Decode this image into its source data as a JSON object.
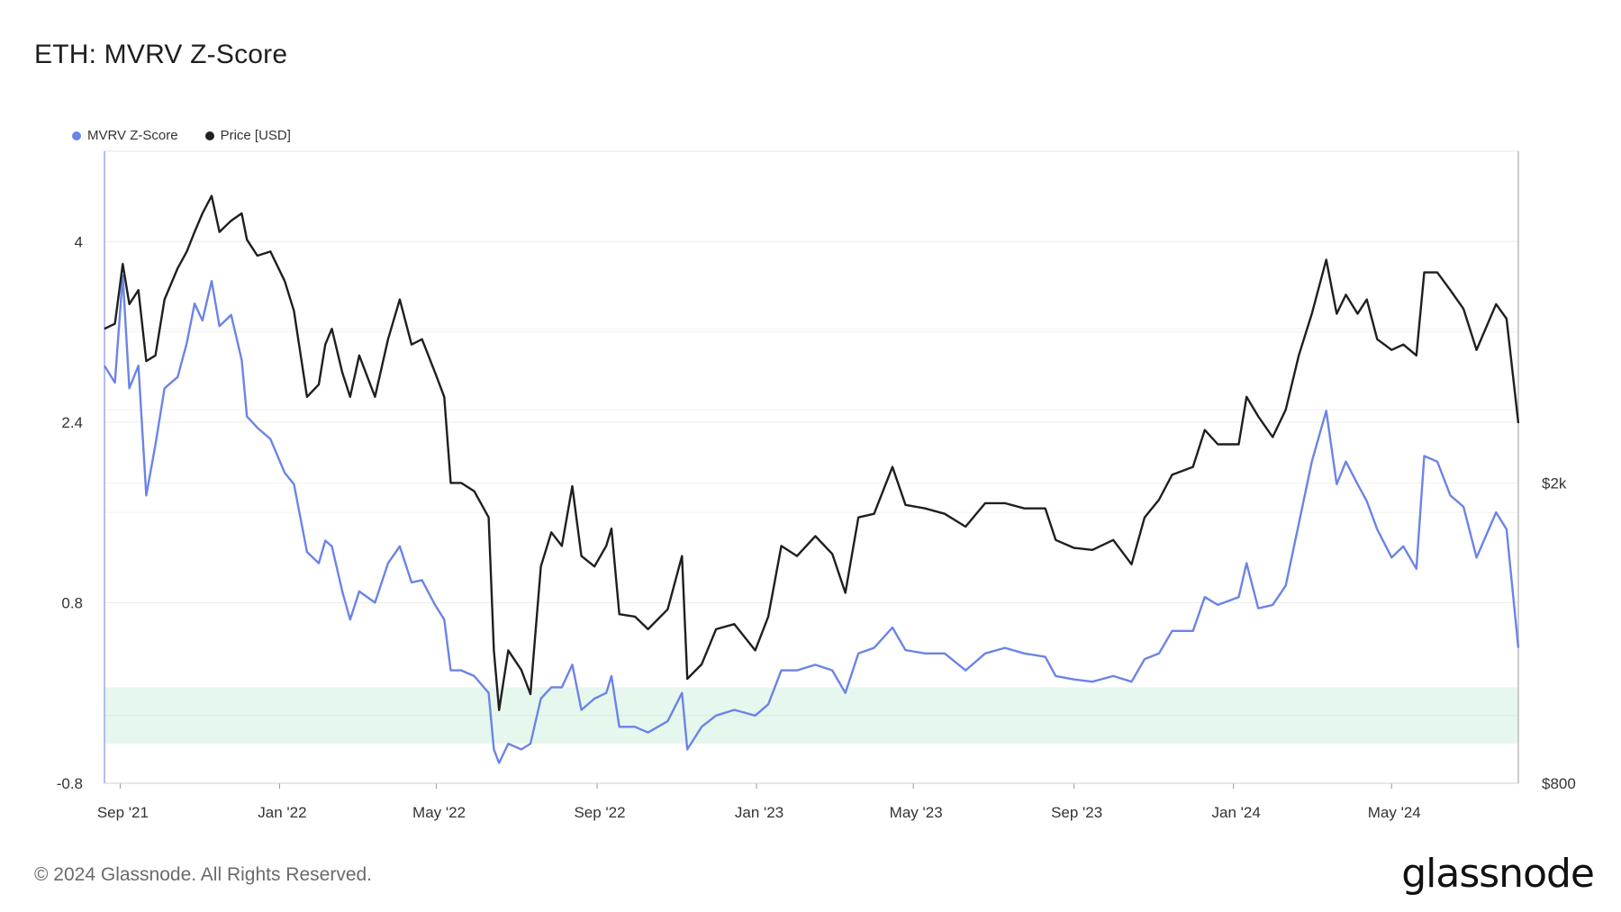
{
  "title": "ETH: MVRV Z-Score",
  "legend": [
    {
      "name": "MVRV Z-Score",
      "color": "#6b84e6"
    },
    {
      "name": "Price [USD]",
      "color": "#222222"
    }
  ],
  "footer": "© 2024 Glassnode. All Rights Reserved.",
  "logo": "glassnode",
  "colors": {
    "zscore": "#6b84e6",
    "price": "#1f1f1f",
    "zone": "#e6f7ee"
  },
  "chart_data": {
    "type": "line",
    "title": "ETH: MVRV Z-Score",
    "x_tick_labels": [
      "Sep '21",
      "Jan '22",
      "May '22",
      "Sep '22",
      "Jan '23",
      "May '23",
      "Sep '23",
      "Jan '24",
      "May '24"
    ],
    "x_range": [
      "2021-08-20",
      "2024-08-06"
    ],
    "y_left": {
      "ticks": [
        4,
        2.4,
        0.8,
        -0.8
      ],
      "tick_labels": [
        "4",
        "2.4",
        "0.8",
        "-0.8"
      ],
      "range": [
        -0.8,
        4.8
      ]
    },
    "y_right": {
      "scale": "log",
      "ticks": [
        2000,
        800
      ],
      "tick_labels": [
        "$2k",
        "$800"
      ],
      "range": [
        800,
        5500
      ]
    },
    "green_zone": {
      "from": -0.45,
      "to": 0.05
    },
    "grid": true,
    "legend_position": "top-left",
    "series": [
      {
        "name": "MVRV Z-Score",
        "axis": "left",
        "points": [
          [
            "2021-08-20",
            2.9
          ],
          [
            "2021-08-28",
            2.75
          ],
          [
            "2021-09-03",
            3.7
          ],
          [
            "2021-09-08",
            2.7
          ],
          [
            "2021-09-15",
            2.9
          ],
          [
            "2021-09-21",
            1.75
          ],
          [
            "2021-09-28",
            2.2
          ],
          [
            "2021-10-05",
            2.7
          ],
          [
            "2021-10-15",
            2.8
          ],
          [
            "2021-10-22",
            3.1
          ],
          [
            "2021-10-28",
            3.45
          ],
          [
            "2021-11-03",
            3.3
          ],
          [
            "2021-11-10",
            3.65
          ],
          [
            "2021-11-16",
            3.25
          ],
          [
            "2021-11-25",
            3.35
          ],
          [
            "2021-12-03",
            2.95
          ],
          [
            "2021-12-07",
            2.45
          ],
          [
            "2021-12-15",
            2.35
          ],
          [
            "2021-12-25",
            2.25
          ],
          [
            "2022-01-05",
            1.95
          ],
          [
            "2022-01-12",
            1.85
          ],
          [
            "2022-01-22",
            1.25
          ],
          [
            "2022-01-31",
            1.15
          ],
          [
            "2022-02-05",
            1.35
          ],
          [
            "2022-02-10",
            1.3
          ],
          [
            "2022-02-18",
            0.9
          ],
          [
            "2022-02-24",
            0.65
          ],
          [
            "2022-03-03",
            0.9
          ],
          [
            "2022-03-15",
            0.8
          ],
          [
            "2022-03-25",
            1.15
          ],
          [
            "2022-04-03",
            1.3
          ],
          [
            "2022-04-12",
            0.98
          ],
          [
            "2022-04-20",
            1.0
          ],
          [
            "2022-04-30",
            0.78
          ],
          [
            "2022-05-07",
            0.65
          ],
          [
            "2022-05-12",
            0.2
          ],
          [
            "2022-05-20",
            0.2
          ],
          [
            "2022-05-30",
            0.15
          ],
          [
            "2022-06-10",
            0.0
          ],
          [
            "2022-06-14",
            -0.5
          ],
          [
            "2022-06-18",
            -0.62
          ],
          [
            "2022-06-25",
            -0.45
          ],
          [
            "2022-07-05",
            -0.5
          ],
          [
            "2022-07-12",
            -0.45
          ],
          [
            "2022-07-20",
            -0.05
          ],
          [
            "2022-07-28",
            0.05
          ],
          [
            "2022-08-05",
            0.05
          ],
          [
            "2022-08-13",
            0.25
          ],
          [
            "2022-08-20",
            -0.15
          ],
          [
            "2022-08-30",
            -0.05
          ],
          [
            "2022-09-08",
            0.0
          ],
          [
            "2022-09-12",
            0.15
          ],
          [
            "2022-09-18",
            -0.3
          ],
          [
            "2022-09-30",
            -0.3
          ],
          [
            "2022-10-10",
            -0.35
          ],
          [
            "2022-10-25",
            -0.25
          ],
          [
            "2022-11-05",
            0.0
          ],
          [
            "2022-11-09",
            -0.5
          ],
          [
            "2022-11-20",
            -0.3
          ],
          [
            "2022-12-01",
            -0.2
          ],
          [
            "2022-12-15",
            -0.15
          ],
          [
            "2022-12-31",
            -0.2
          ],
          [
            "2023-01-10",
            -0.1
          ],
          [
            "2023-01-20",
            0.2
          ],
          [
            "2023-02-01",
            0.2
          ],
          [
            "2023-02-15",
            0.25
          ],
          [
            "2023-02-28",
            0.2
          ],
          [
            "2023-03-10",
            0.0
          ],
          [
            "2023-03-20",
            0.35
          ],
          [
            "2023-04-01",
            0.4
          ],
          [
            "2023-04-15",
            0.58
          ],
          [
            "2023-04-25",
            0.38
          ],
          [
            "2023-05-10",
            0.35
          ],
          [
            "2023-05-25",
            0.35
          ],
          [
            "2023-06-10",
            0.2
          ],
          [
            "2023-06-25",
            0.35
          ],
          [
            "2023-07-10",
            0.4
          ],
          [
            "2023-07-25",
            0.35
          ],
          [
            "2023-08-10",
            0.32
          ],
          [
            "2023-08-18",
            0.15
          ],
          [
            "2023-09-01",
            0.12
          ],
          [
            "2023-09-15",
            0.1
          ],
          [
            "2023-10-01",
            0.15
          ],
          [
            "2023-10-15",
            0.1
          ],
          [
            "2023-10-25",
            0.3
          ],
          [
            "2023-11-05",
            0.35
          ],
          [
            "2023-11-15",
            0.55
          ],
          [
            "2023-12-01",
            0.55
          ],
          [
            "2023-12-10",
            0.85
          ],
          [
            "2023-12-20",
            0.78
          ],
          [
            "2024-01-05",
            0.85
          ],
          [
            "2024-01-11",
            1.15
          ],
          [
            "2024-01-20",
            0.75
          ],
          [
            "2024-01-31",
            0.78
          ],
          [
            "2024-02-10",
            0.95
          ],
          [
            "2024-02-20",
            1.5
          ],
          [
            "2024-03-01",
            2.05
          ],
          [
            "2024-03-12",
            2.5
          ],
          [
            "2024-03-20",
            1.85
          ],
          [
            "2024-03-27",
            2.05
          ],
          [
            "2024-04-05",
            1.85
          ],
          [
            "2024-04-12",
            1.7
          ],
          [
            "2024-04-20",
            1.45
          ],
          [
            "2024-05-01",
            1.2
          ],
          [
            "2024-05-10",
            1.3
          ],
          [
            "2024-05-20",
            1.1
          ],
          [
            "2024-05-26",
            2.1
          ],
          [
            "2024-06-05",
            2.05
          ],
          [
            "2024-06-15",
            1.75
          ],
          [
            "2024-06-25",
            1.65
          ],
          [
            "2024-07-05",
            1.2
          ],
          [
            "2024-07-20",
            1.6
          ],
          [
            "2024-07-28",
            1.45
          ],
          [
            "2024-08-06",
            0.4
          ]
        ]
      },
      {
        "name": "Price [USD]",
        "axis": "right",
        "points": [
          [
            "2021-08-20",
            3200
          ],
          [
            "2021-08-28",
            3250
          ],
          [
            "2021-09-03",
            3900
          ],
          [
            "2021-09-08",
            3450
          ],
          [
            "2021-09-15",
            3600
          ],
          [
            "2021-09-21",
            2900
          ],
          [
            "2021-09-28",
            2950
          ],
          [
            "2021-10-05",
            3500
          ],
          [
            "2021-10-15",
            3850
          ],
          [
            "2021-10-22",
            4050
          ],
          [
            "2021-10-28",
            4300
          ],
          [
            "2021-11-03",
            4550
          ],
          [
            "2021-11-10",
            4800
          ],
          [
            "2021-11-16",
            4300
          ],
          [
            "2021-11-25",
            4450
          ],
          [
            "2021-12-03",
            4550
          ],
          [
            "2021-12-07",
            4200
          ],
          [
            "2021-12-15",
            4000
          ],
          [
            "2021-12-25",
            4050
          ],
          [
            "2022-01-05",
            3700
          ],
          [
            "2022-01-12",
            3380
          ],
          [
            "2022-01-22",
            2600
          ],
          [
            "2022-01-31",
            2700
          ],
          [
            "2022-02-05",
            3050
          ],
          [
            "2022-02-10",
            3200
          ],
          [
            "2022-02-18",
            2800
          ],
          [
            "2022-02-24",
            2600
          ],
          [
            "2022-03-03",
            2950
          ],
          [
            "2022-03-15",
            2600
          ],
          [
            "2022-03-25",
            3100
          ],
          [
            "2022-04-03",
            3500
          ],
          [
            "2022-04-12",
            3050
          ],
          [
            "2022-04-20",
            3100
          ],
          [
            "2022-04-30",
            2800
          ],
          [
            "2022-05-07",
            2600
          ],
          [
            "2022-05-12",
            2000
          ],
          [
            "2022-05-20",
            2000
          ],
          [
            "2022-05-30",
            1950
          ],
          [
            "2022-06-10",
            1800
          ],
          [
            "2022-06-14",
            1200
          ],
          [
            "2022-06-18",
            1000
          ],
          [
            "2022-06-25",
            1200
          ],
          [
            "2022-07-05",
            1130
          ],
          [
            "2022-07-12",
            1050
          ],
          [
            "2022-07-20",
            1550
          ],
          [
            "2022-07-28",
            1720
          ],
          [
            "2022-08-05",
            1650
          ],
          [
            "2022-08-13",
            1980
          ],
          [
            "2022-08-20",
            1600
          ],
          [
            "2022-08-30",
            1550
          ],
          [
            "2022-09-08",
            1650
          ],
          [
            "2022-09-12",
            1740
          ],
          [
            "2022-09-18",
            1340
          ],
          [
            "2022-09-30",
            1330
          ],
          [
            "2022-10-10",
            1280
          ],
          [
            "2022-10-25",
            1360
          ],
          [
            "2022-11-05",
            1600
          ],
          [
            "2022-11-09",
            1100
          ],
          [
            "2022-11-20",
            1150
          ],
          [
            "2022-12-01",
            1280
          ],
          [
            "2022-12-15",
            1300
          ],
          [
            "2022-12-31",
            1200
          ],
          [
            "2023-01-10",
            1330
          ],
          [
            "2023-01-20",
            1650
          ],
          [
            "2023-02-01",
            1600
          ],
          [
            "2023-02-15",
            1700
          ],
          [
            "2023-02-28",
            1610
          ],
          [
            "2023-03-10",
            1430
          ],
          [
            "2023-03-20",
            1800
          ],
          [
            "2023-04-01",
            1820
          ],
          [
            "2023-04-15",
            2100
          ],
          [
            "2023-04-25",
            1870
          ],
          [
            "2023-05-10",
            1850
          ],
          [
            "2023-05-25",
            1820
          ],
          [
            "2023-06-10",
            1750
          ],
          [
            "2023-06-25",
            1880
          ],
          [
            "2023-07-10",
            1880
          ],
          [
            "2023-07-25",
            1850
          ],
          [
            "2023-08-10",
            1850
          ],
          [
            "2023-08-18",
            1680
          ],
          [
            "2023-09-01",
            1640
          ],
          [
            "2023-09-15",
            1630
          ],
          [
            "2023-10-01",
            1680
          ],
          [
            "2023-10-15",
            1560
          ],
          [
            "2023-10-25",
            1800
          ],
          [
            "2023-11-05",
            1900
          ],
          [
            "2023-11-15",
            2050
          ],
          [
            "2023-12-01",
            2100
          ],
          [
            "2023-12-10",
            2350
          ],
          [
            "2023-12-20",
            2250
          ],
          [
            "2024-01-05",
            2250
          ],
          [
            "2024-01-11",
            2600
          ],
          [
            "2024-01-20",
            2450
          ],
          [
            "2024-01-31",
            2300
          ],
          [
            "2024-02-10",
            2500
          ],
          [
            "2024-02-20",
            2950
          ],
          [
            "2024-03-01",
            3350
          ],
          [
            "2024-03-12",
            3950
          ],
          [
            "2024-03-20",
            3350
          ],
          [
            "2024-03-27",
            3550
          ],
          [
            "2024-04-05",
            3350
          ],
          [
            "2024-04-12",
            3500
          ],
          [
            "2024-04-20",
            3100
          ],
          [
            "2024-05-01",
            3000
          ],
          [
            "2024-05-10",
            3050
          ],
          [
            "2024-05-20",
            2950
          ],
          [
            "2024-05-26",
            3800
          ],
          [
            "2024-06-05",
            3800
          ],
          [
            "2024-06-15",
            3600
          ],
          [
            "2024-06-25",
            3400
          ],
          [
            "2024-07-05",
            3000
          ],
          [
            "2024-07-20",
            3450
          ],
          [
            "2024-07-28",
            3300
          ],
          [
            "2024-08-06",
            2400
          ]
        ]
      }
    ]
  }
}
